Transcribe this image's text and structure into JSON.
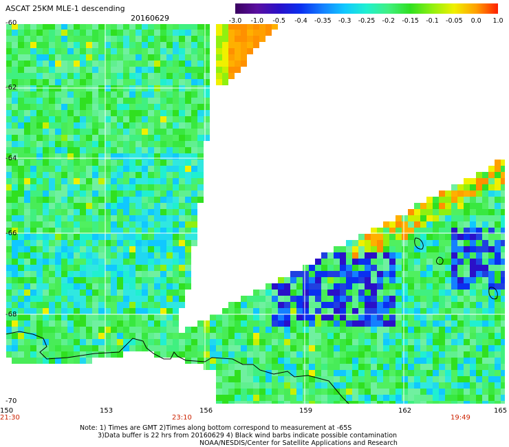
{
  "header": {
    "title": "ASCAT 25KM MLE-1 descending",
    "date": "20160629"
  },
  "colorbar": {
    "labels": [
      "-3.0",
      "-1.0",
      "-0.5",
      "-0.4",
      "-0.35",
      "-0.3",
      "-0.25",
      "-0.2",
      "-0.15",
      "-0.1",
      "-0.05",
      "0.0",
      "1.0"
    ],
    "colors": [
      "#3a0060",
      "#5a10a0",
      "#2a10c8",
      "#0a30f0",
      "#1480ff",
      "#10c8ff",
      "#20f0d0",
      "#40f080",
      "#30e020",
      "#90f010",
      "#f0f000",
      "#ffa000",
      "#ff2000"
    ]
  },
  "axes": {
    "y_ticks": [
      "-60",
      "-62",
      "-64",
      "-66",
      "-68",
      "-70"
    ],
    "x_ticks": [
      "150",
      "153",
      "156",
      "159",
      "162",
      "165"
    ],
    "times": [
      "21:30",
      "23:10",
      "19:49"
    ]
  },
  "notes": {
    "line1": "Note: 1) Times are GMT 2)Times along bottom correspond to measurement at -65S",
    "line2": "3)Data buffer is 22 hrs from 20160629 4) Black wind barbs indicate possible contamination",
    "line3": "NOAA/NESDIS/Center for Satellite Applications and Research"
  },
  "map": {
    "land_color": "#ffffff",
    "coast_color": "#000000",
    "grid_color": "#ffffff"
  }
}
